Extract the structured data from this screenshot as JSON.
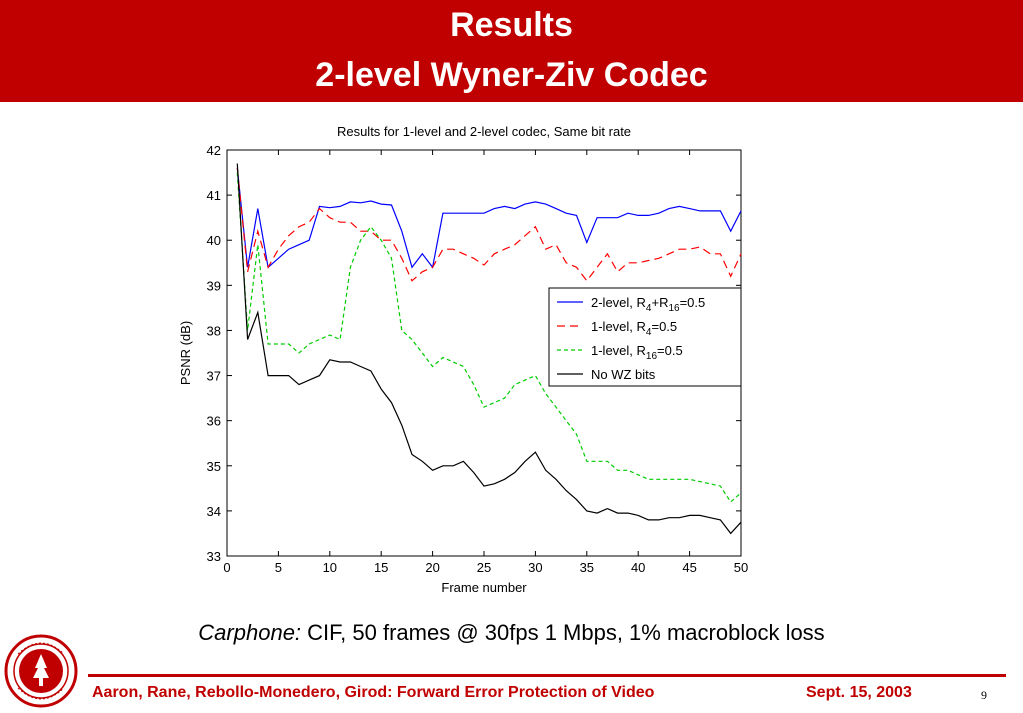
{
  "slide": {
    "title_line1": "Results",
    "title_line2": "2-level Wyner-Ziv Codec",
    "caption_italic": "Carphone:",
    "caption_rest": " CIF, 50 frames @ 30fps 1 Mbps, 1% macroblock loss",
    "footer_authors": "Aaron, Rane, Rebollo-Monedero, Girod: Forward Error Protection of Video",
    "footer_date": "Sept. 15, 2003",
    "page_number": "9",
    "accent_color": "#c00000",
    "seal_icon": "university-seal-icon"
  },
  "chart_data": {
    "type": "line",
    "title": "Results for 1-level and 2-level codec, Same bit rate",
    "xlabel": "Frame number",
    "ylabel": "PSNR (dB)",
    "xlim": [
      0,
      50
    ],
    "ylim": [
      33,
      42
    ],
    "xticks": [
      0,
      5,
      10,
      15,
      20,
      25,
      30,
      35,
      40,
      45,
      50
    ],
    "yticks": [
      33,
      34,
      35,
      36,
      37,
      38,
      39,
      40,
      41,
      42
    ],
    "grid": false,
    "legend_position": "center-right",
    "x": [
      1,
      2,
      3,
      4,
      5,
      6,
      7,
      8,
      9,
      10,
      11,
      12,
      13,
      14,
      15,
      16,
      17,
      18,
      19,
      20,
      21,
      22,
      23,
      24,
      25,
      26,
      27,
      28,
      29,
      30,
      31,
      32,
      33,
      34,
      35,
      36,
      37,
      38,
      39,
      40,
      41,
      42,
      43,
      44,
      45,
      46,
      47,
      48,
      49,
      50
    ],
    "series": [
      {
        "name": "2-level, R4+R16=0.5",
        "legend_main": "2-level, R",
        "legend_sub1": "4",
        "legend_mid": "+R",
        "legend_sub2": "16",
        "legend_tail": "=0.5",
        "color": "#0000ff",
        "dash": "solid",
        "values": [
          41.6,
          39.4,
          40.7,
          39.4,
          39.6,
          39.8,
          39.9,
          40.0,
          40.75,
          40.72,
          40.75,
          40.85,
          40.83,
          40.87,
          40.8,
          40.78,
          40.2,
          39.4,
          39.7,
          39.4,
          40.6,
          40.6,
          40.6,
          40.6,
          40.6,
          40.7,
          40.75,
          40.7,
          40.8,
          40.85,
          40.8,
          40.7,
          40.6,
          40.55,
          39.95,
          40.5,
          40.5,
          40.5,
          40.6,
          40.55,
          40.55,
          40.6,
          40.7,
          40.75,
          40.7,
          40.65,
          40.65,
          40.65,
          40.2,
          40.65
        ]
      },
      {
        "name": "1-level, R4=0.5",
        "legend_main": "1-level, R",
        "legend_sub1": "4",
        "legend_mid": "",
        "legend_sub2": "",
        "legend_tail": "=0.5",
        "color": "#ff0000",
        "dash": "8,5",
        "values": [
          41.6,
          39.3,
          40.2,
          39.4,
          39.8,
          40.1,
          40.3,
          40.4,
          40.7,
          40.5,
          40.4,
          40.4,
          40.2,
          40.2,
          40.0,
          40.0,
          39.6,
          39.1,
          39.3,
          39.4,
          39.8,
          39.8,
          39.7,
          39.6,
          39.45,
          39.7,
          39.8,
          39.9,
          40.1,
          40.3,
          39.8,
          39.9,
          39.5,
          39.4,
          39.1,
          39.4,
          39.7,
          39.3,
          39.5,
          39.5,
          39.55,
          39.6,
          39.7,
          39.8,
          39.8,
          39.85,
          39.7,
          39.7,
          39.2,
          39.7
        ]
      },
      {
        "name": "1-level, R16=0.5",
        "legend_main": "1-level, R",
        "legend_sub1": "16",
        "legend_mid": "",
        "legend_sub2": "",
        "legend_tail": "=0.5",
        "color": "#00cc00",
        "dash": "4,3",
        "values": [
          41.5,
          38.0,
          39.9,
          37.7,
          37.7,
          37.7,
          37.5,
          37.7,
          37.8,
          37.9,
          37.8,
          39.4,
          40.0,
          40.3,
          40.0,
          39.6,
          38.0,
          37.8,
          37.5,
          37.2,
          37.4,
          37.3,
          37.2,
          36.8,
          36.3,
          36.4,
          36.5,
          36.8,
          36.9,
          37.0,
          36.6,
          36.3,
          36.0,
          35.7,
          35.1,
          35.1,
          35.1,
          34.9,
          34.9,
          34.8,
          34.7,
          34.7,
          34.7,
          34.7,
          34.7,
          34.65,
          34.6,
          34.55,
          34.2,
          34.4
        ]
      },
      {
        "name": "No WZ bits",
        "legend_main": "No WZ bits",
        "legend_sub1": "",
        "legend_mid": "",
        "legend_sub2": "",
        "legend_tail": "",
        "color": "#000000",
        "dash": "solid",
        "values": [
          41.7,
          37.8,
          38.4,
          37.0,
          37.0,
          37.0,
          36.8,
          36.9,
          37.0,
          37.35,
          37.3,
          37.3,
          37.2,
          37.1,
          36.7,
          36.4,
          35.9,
          35.25,
          35.1,
          34.9,
          35.0,
          35.0,
          35.1,
          34.85,
          34.55,
          34.6,
          34.7,
          34.85,
          35.1,
          35.3,
          34.9,
          34.7,
          34.45,
          34.25,
          34.0,
          33.95,
          34.05,
          33.95,
          33.95,
          33.9,
          33.8,
          33.8,
          33.85,
          33.85,
          33.9,
          33.9,
          33.85,
          33.8,
          33.5,
          33.75
        ]
      }
    ]
  }
}
